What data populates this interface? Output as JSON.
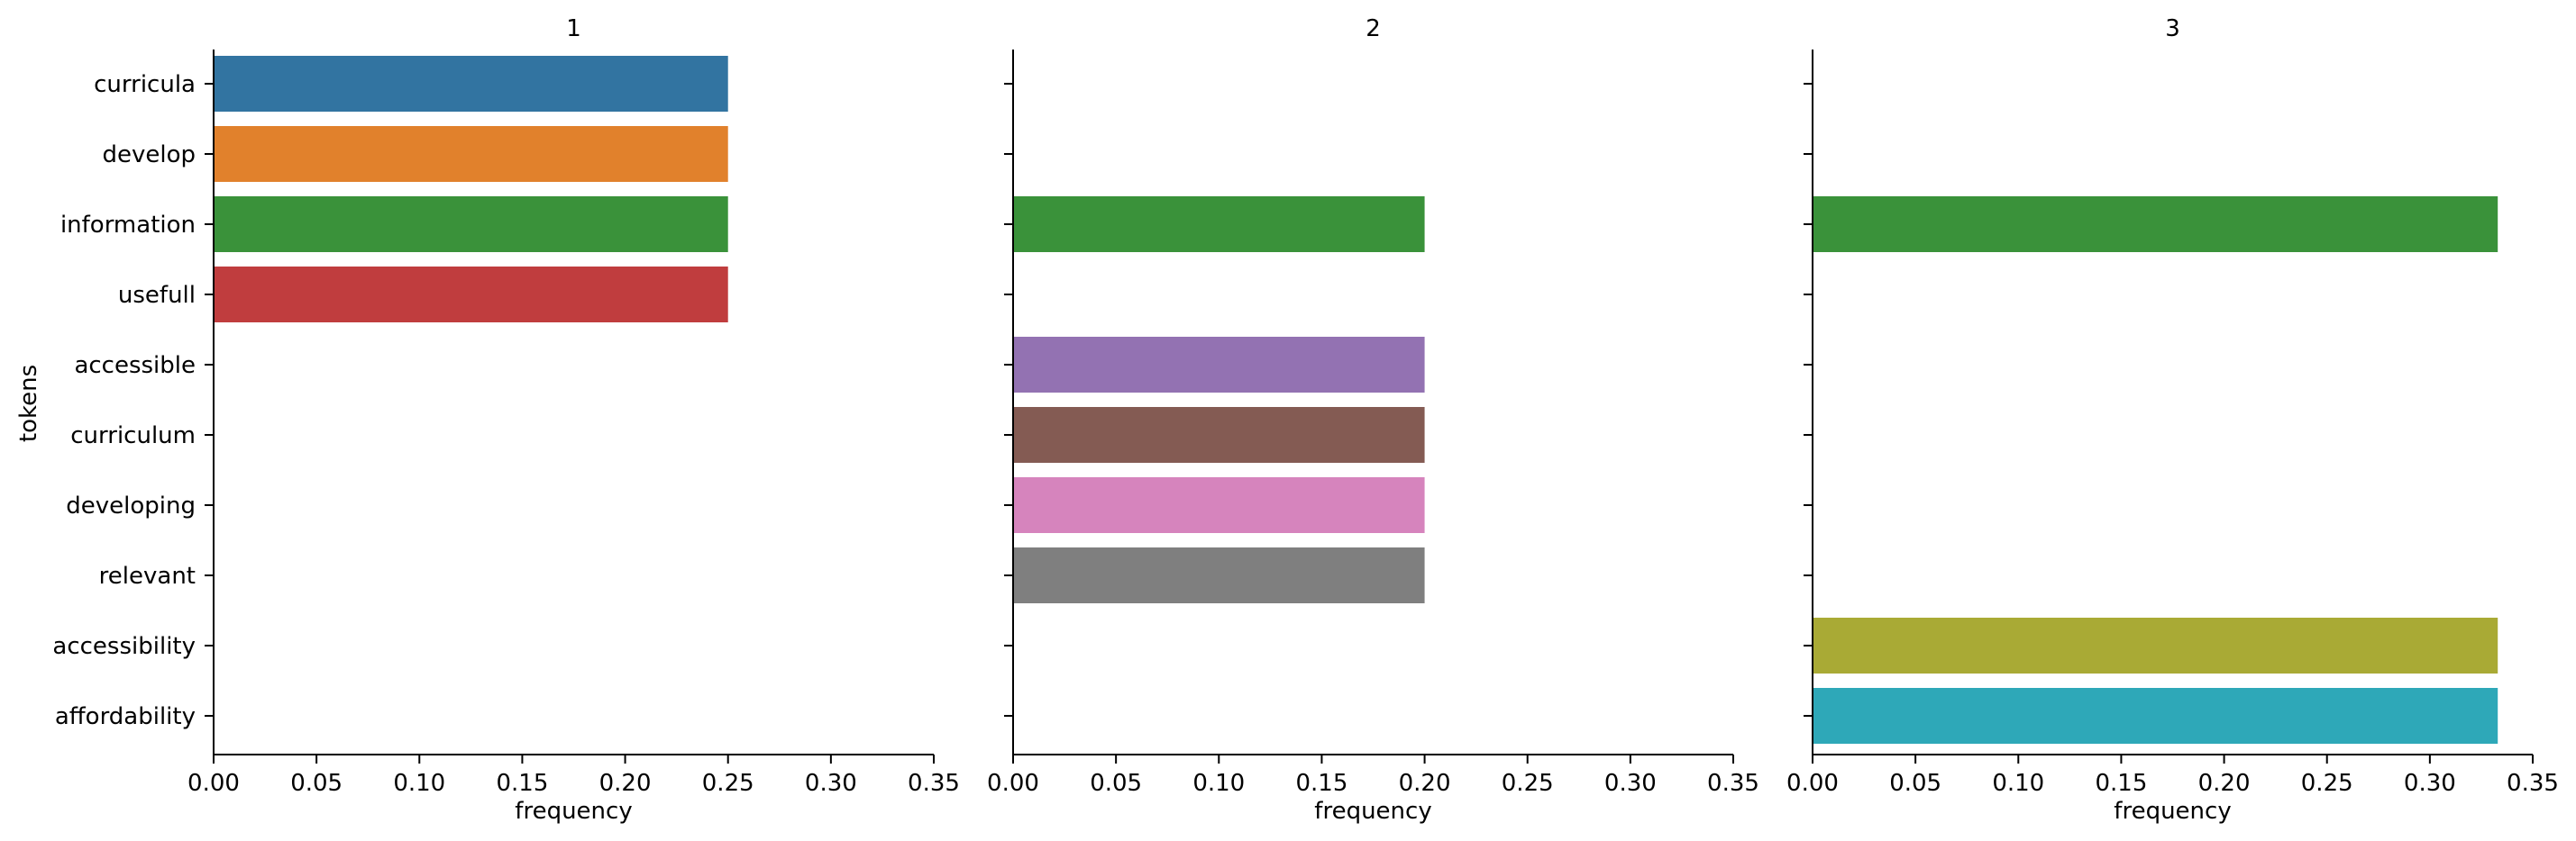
{
  "chart_data": {
    "type": "bar",
    "orientation": "horizontal",
    "facets": [
      "1",
      "2",
      "3"
    ],
    "categories": [
      "curricula",
      "develop",
      "information",
      "usefull",
      "accessible",
      "curriculum",
      "developing",
      "relevant",
      "accessibility",
      "affordability"
    ],
    "colors": [
      "#3274a1",
      "#e1812c",
      "#3a923a",
      "#c03d3e",
      "#9372b2",
      "#845b53",
      "#d684bd",
      "#7f7f7f",
      "#a9aa35",
      "#2ea8b8"
    ],
    "series": [
      {
        "name": "1",
        "values": [
          0.25,
          0.25,
          0.25,
          0.25,
          null,
          null,
          null,
          null,
          null,
          null
        ]
      },
      {
        "name": "2",
        "values": [
          null,
          null,
          0.2,
          null,
          0.2,
          0.2,
          0.2,
          0.2,
          null,
          null
        ]
      },
      {
        "name": "3",
        "values": [
          null,
          null,
          0.333,
          null,
          null,
          null,
          null,
          null,
          0.333,
          0.333
        ]
      }
    ],
    "xlabel": "frequency",
    "ylabel": "tokens",
    "xlim": [
      0,
      0.35
    ],
    "xticks": [
      "0.00",
      "0.05",
      "0.10",
      "0.15",
      "0.20",
      "0.25",
      "0.30",
      "0.35"
    ],
    "grid": false,
    "legend": "none"
  }
}
